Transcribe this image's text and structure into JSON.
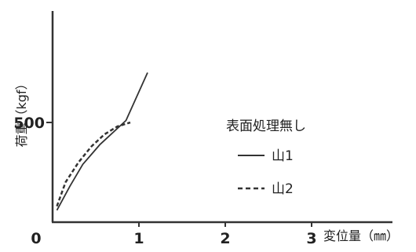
{
  "chart_data": {
    "type": "line",
    "title": "",
    "xlabel": "変位量（㎜）",
    "ylabel": "荷重（kgf）",
    "xlim": [
      0,
      4.2
    ],
    "ylim": [
      0,
      900
    ],
    "x_ticks": [
      "0",
      "1",
      "2",
      "3"
    ],
    "y_ticks": [
      "500"
    ],
    "grid": false,
    "legend": {
      "placement": "right",
      "title": "表面処理無し",
      "entries": [
        {
          "label": "山1",
          "style": "solid"
        },
        {
          "label": "山2",
          "style": "dashed"
        }
      ]
    },
    "series": [
      {
        "name": "山1",
        "style": "solid",
        "x": [
          0.05,
          0.2,
          0.35,
          0.45,
          0.55,
          0.65,
          0.75,
          0.85,
          1.1
        ],
        "y": [
          60,
          180,
          290,
          340,
          390,
          430,
          470,
          510,
          750
        ]
      },
      {
        "name": "山2",
        "style": "dashed",
        "x": [
          0.05,
          0.15,
          0.3,
          0.45,
          0.6,
          0.75,
          0.9
        ],
        "y": [
          80,
          200,
          300,
          380,
          440,
          480,
          500
        ]
      }
    ]
  }
}
